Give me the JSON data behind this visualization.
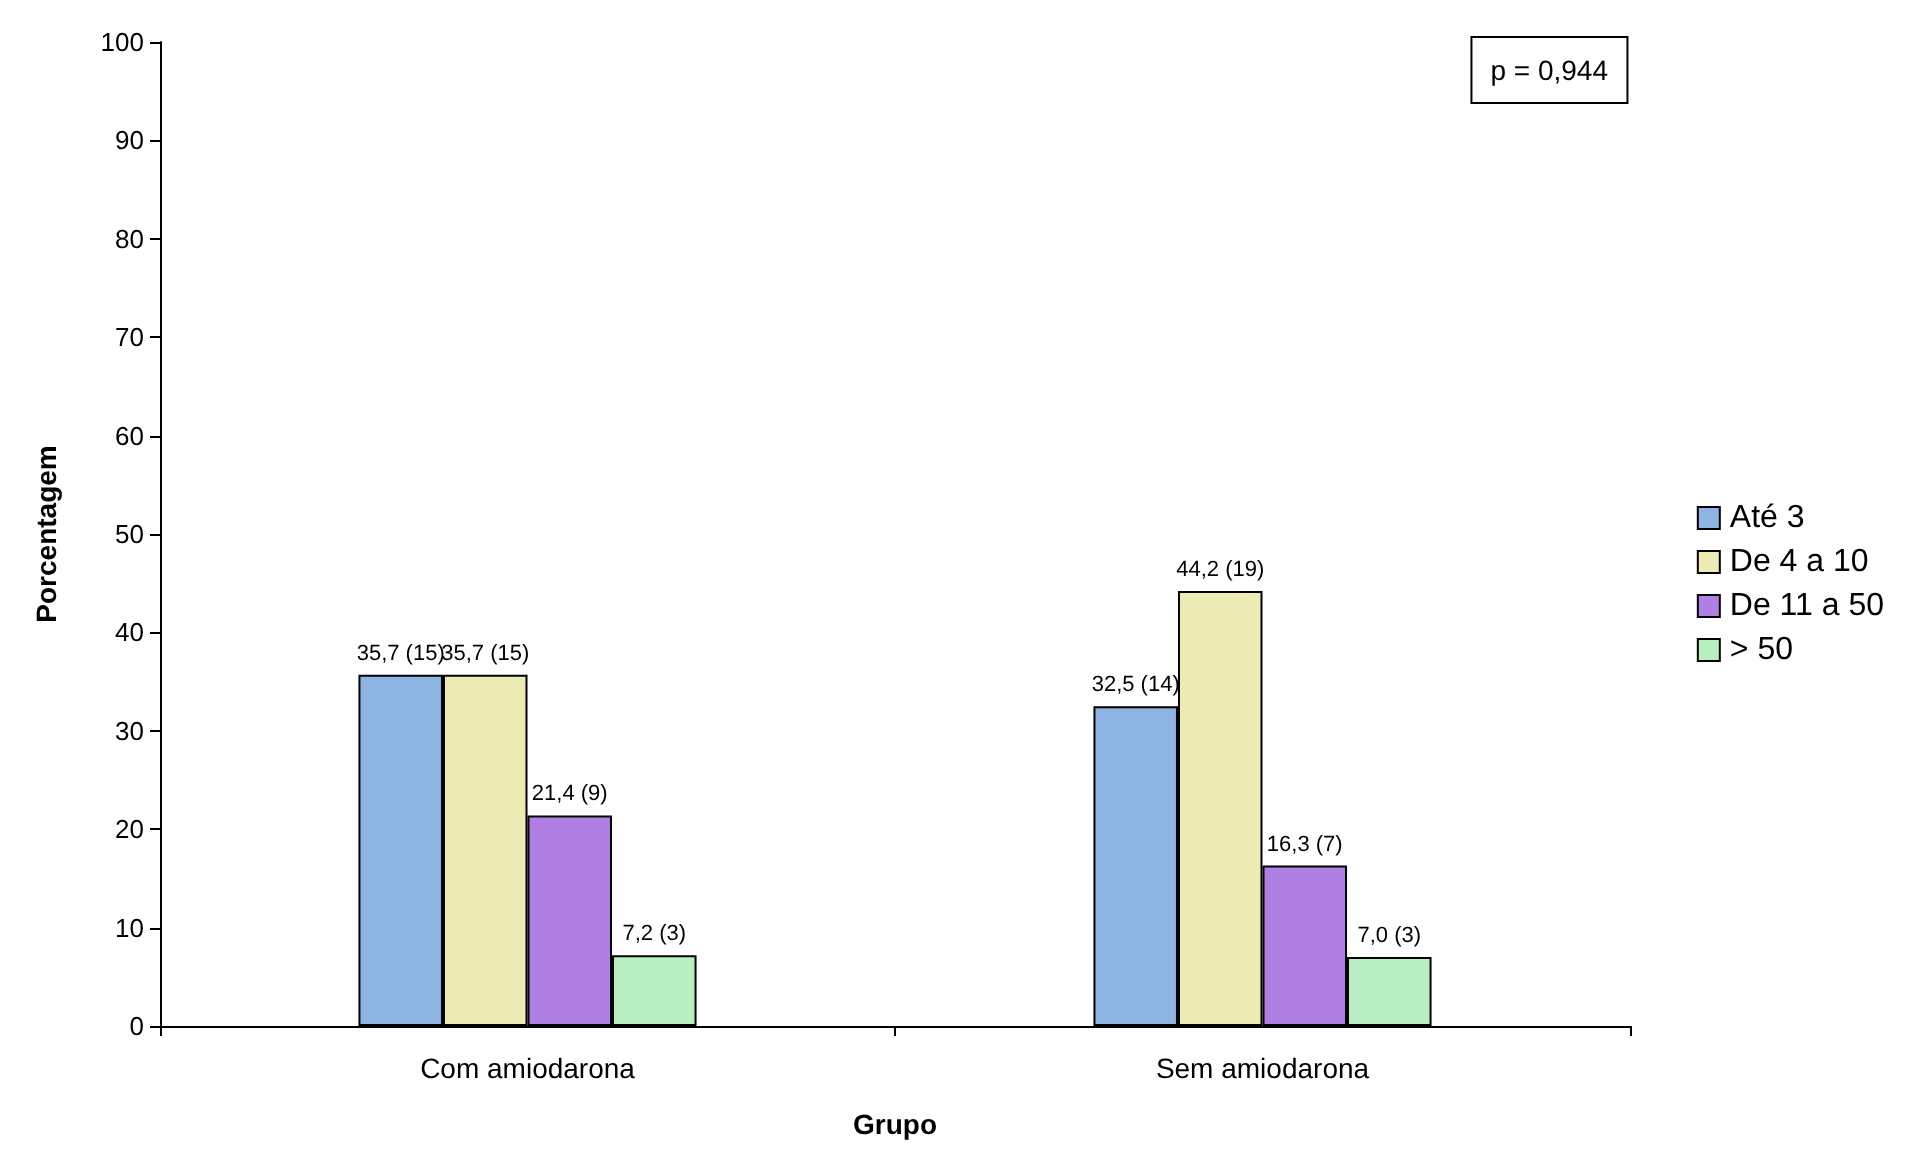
{
  "chart_data": {
    "type": "bar",
    "xlabel": "Grupo",
    "ylabel": "Porcentagem",
    "categories": [
      "Com amiodarona",
      "Sem amiodarona"
    ],
    "series": [
      {
        "name": "Até 3",
        "color": "#8eb4e3",
        "values": [
          35.7,
          32.5
        ],
        "value_labels": [
          "35,7 (15)",
          "32,5 (14)"
        ]
      },
      {
        "name": "De 4 a 10",
        "color": "#ecebb4",
        "values": [
          35.7,
          44.2
        ],
        "value_labels": [
          "35,7 (15)",
          "44,2 (19)"
        ]
      },
      {
        "name": "De 11 a 50",
        "color": "#b07fe3",
        "values": [
          21.4,
          16.3
        ],
        "value_labels": [
          "21,4 (9)",
          "16,3 (7)"
        ]
      },
      {
        "name": "> 50",
        "color": "#b9efc0",
        "values": [
          7.2,
          7.0
        ],
        "value_labels": [
          "7,2 (3)",
          "7,0 (3)"
        ]
      }
    ],
    "ylim": [
      0,
      100
    ],
    "yticks": [
      0,
      10,
      20,
      30,
      40,
      50,
      60,
      70,
      80,
      90,
      100
    ],
    "grid": false,
    "legend": "right",
    "annotations": [
      "p = 0,944"
    ]
  }
}
